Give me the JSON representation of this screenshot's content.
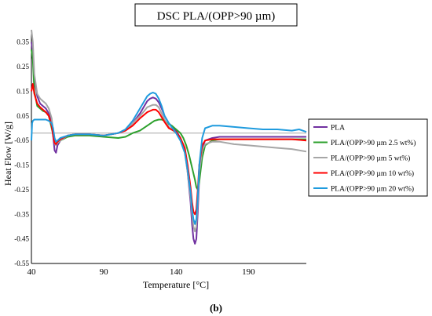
{
  "chart_data": {
    "type": "line",
    "title": "DSC PLA/(OPP>90 µm)",
    "xlabel": "Temperature [°C]",
    "ylabel": "Heat Flow [W/g]",
    "caption": "(b)",
    "xlim": [
      40,
      230
    ],
    "ylim": [
      -0.55,
      0.4
    ],
    "x_ticks": [
      40,
      90,
      140,
      190
    ],
    "y_ticks": [
      0.35,
      0.25,
      0.15,
      0.05,
      -0.05,
      -0.15,
      -0.25,
      -0.35,
      -0.45,
      -0.55
    ],
    "y_tick_labels": [
      "0.35",
      "0.25",
      "0.15",
      "0.05",
      "-0.05",
      "-0.15",
      "-0.25",
      "-0.35",
      "-0.45",
      "-0.55"
    ],
    "reference_line_y": -0.02,
    "grid": false,
    "legend_position": "right",
    "series": [
      {
        "name": "PLA",
        "color": "#7030a0",
        "x": [
          40,
          41,
          42,
          44,
          46,
          48,
          50,
          52,
          54,
          55,
          56,
          57,
          58,
          60,
          65,
          70,
          80,
          90,
          100,
          105,
          110,
          115,
          118,
          120,
          122,
          124,
          126,
          128,
          130,
          132,
          135,
          140,
          143,
          146,
          148,
          150,
          151,
          152,
          153,
          154,
          155,
          156,
          158,
          160,
          165,
          170,
          180,
          190,
          200,
          210,
          220,
          230
        ],
        "y": [
          0.35,
          0.31,
          0.21,
          0.13,
          0.1,
          0.09,
          0.08,
          0.06,
          0.02,
          -0.03,
          -0.09,
          -0.1,
          -0.07,
          -0.05,
          -0.03,
          -0.025,
          -0.025,
          -0.03,
          -0.02,
          -0.01,
          0.02,
          0.06,
          0.09,
          0.11,
          0.12,
          0.125,
          0.12,
          0.105,
          0.08,
          0.05,
          0.02,
          -0.01,
          -0.04,
          -0.09,
          -0.18,
          -0.3,
          -0.39,
          -0.45,
          -0.47,
          -0.45,
          -0.34,
          -0.2,
          -0.08,
          -0.05,
          -0.04,
          -0.035,
          -0.035,
          -0.035,
          -0.035,
          -0.035,
          -0.035,
          -0.035
        ]
      },
      {
        "name": "PLA/(OPP>90 µm 2.5 wt%)",
        "color": "#2ca02c",
        "x": [
          40,
          41,
          42,
          44,
          46,
          48,
          50,
          52,
          54,
          56,
          58,
          60,
          65,
          70,
          80,
          90,
          100,
          105,
          110,
          115,
          120,
          125,
          128,
          130,
          132,
          134,
          137,
          140,
          143,
          145,
          147,
          149,
          151,
          153,
          154,
          155,
          156,
          157,
          158,
          160,
          165,
          170,
          180,
          190,
          200,
          210,
          220,
          230
        ],
        "y": [
          0.32,
          0.28,
          0.15,
          0.09,
          0.08,
          0.07,
          0.065,
          0.05,
          0.0,
          -0.05,
          -0.06,
          -0.05,
          -0.035,
          -0.03,
          -0.03,
          -0.035,
          -0.04,
          -0.035,
          -0.02,
          -0.01,
          0.01,
          0.03,
          0.035,
          0.035,
          0.03,
          0.02,
          0.01,
          -0.005,
          -0.02,
          -0.04,
          -0.07,
          -0.11,
          -0.16,
          -0.21,
          -0.24,
          -0.25,
          -0.22,
          -0.17,
          -0.12,
          -0.07,
          -0.05,
          -0.045,
          -0.045,
          -0.045,
          -0.045,
          -0.045,
          -0.045,
          -0.045
        ]
      },
      {
        "name": "PLA/(OPP>90 µm 5 wt%)",
        "color": "#a6a6a6",
        "x": [
          40,
          41,
          42,
          44,
          46,
          48,
          50,
          52,
          54,
          55,
          56,
          57,
          58,
          60,
          65,
          70,
          80,
          90,
          100,
          105,
          110,
          115,
          118,
          120,
          122,
          124,
          126,
          128,
          130,
          132,
          135,
          140,
          143,
          146,
          148,
          150,
          151,
          152,
          153,
          154,
          155,
          156,
          158,
          160,
          165,
          170,
          180,
          190,
          200,
          210,
          220,
          230
        ],
        "y": [
          0.4,
          0.35,
          0.22,
          0.14,
          0.12,
          0.11,
          0.1,
          0.08,
          0.04,
          -0.01,
          -0.06,
          -0.07,
          -0.06,
          -0.05,
          -0.03,
          -0.025,
          -0.025,
          -0.03,
          -0.02,
          -0.01,
          0.02,
          0.05,
          0.07,
          0.085,
          0.09,
          0.095,
          0.095,
          0.085,
          0.06,
          0.035,
          0.005,
          -0.02,
          -0.05,
          -0.1,
          -0.18,
          -0.28,
          -0.35,
          -0.4,
          -0.42,
          -0.4,
          -0.3,
          -0.18,
          -0.09,
          -0.065,
          -0.055,
          -0.055,
          -0.065,
          -0.07,
          -0.075,
          -0.08,
          -0.085,
          -0.095
        ]
      },
      {
        "name": "PLA/(OPP>90 µm 10 wt%)",
        "color": "#ff0000",
        "x": [
          40,
          41,
          42,
          44,
          46,
          48,
          50,
          52,
          54,
          55,
          56,
          57,
          58,
          60,
          65,
          70,
          80,
          90,
          100,
          105,
          110,
          115,
          118,
          120,
          122,
          124,
          126,
          128,
          130,
          132,
          135,
          140,
          143,
          146,
          148,
          150,
          151,
          152,
          153,
          154,
          155,
          156,
          158,
          160,
          165,
          170,
          180,
          190,
          200,
          210,
          220,
          230
        ],
        "y": [
          0.15,
          0.18,
          0.14,
          0.1,
          0.085,
          0.075,
          0.065,
          0.05,
          0.01,
          -0.03,
          -0.06,
          -0.065,
          -0.055,
          -0.045,
          -0.03,
          -0.025,
          -0.025,
          -0.03,
          -0.02,
          -0.01,
          0.01,
          0.04,
          0.055,
          0.065,
          0.07,
          0.075,
          0.075,
          0.065,
          0.045,
          0.025,
          0.0,
          -0.015,
          -0.04,
          -0.08,
          -0.15,
          -0.24,
          -0.3,
          -0.34,
          -0.35,
          -0.33,
          -0.25,
          -0.15,
          -0.07,
          -0.05,
          -0.045,
          -0.045,
          -0.045,
          -0.045,
          -0.045,
          -0.045,
          -0.045,
          -0.05
        ]
      },
      {
        "name": "PLA/(OPP>90 µm 20 wt%)",
        "color": "#1f9bde",
        "x": [
          40,
          40.5,
          41,
          42,
          44,
          46,
          48,
          50,
          52,
          54,
          55,
          56,
          57,
          58,
          60,
          65,
          70,
          80,
          90,
          100,
          105,
          110,
          115,
          118,
          120,
          122,
          124,
          126,
          128,
          130,
          132,
          135,
          140,
          143,
          146,
          148,
          150,
          151,
          152,
          153,
          154,
          155,
          156,
          158,
          160,
          165,
          170,
          180,
          190,
          200,
          210,
          220,
          225,
          230
        ],
        "y": [
          -0.05,
          0.02,
          0.03,
          0.035,
          0.035,
          0.035,
          0.035,
          0.035,
          0.03,
          0.02,
          0.0,
          -0.04,
          -0.055,
          -0.05,
          -0.04,
          -0.03,
          -0.025,
          -0.025,
          -0.03,
          -0.02,
          -0.005,
          0.03,
          0.08,
          0.11,
          0.13,
          0.14,
          0.145,
          0.14,
          0.12,
          0.09,
          0.05,
          0.02,
          -0.02,
          -0.05,
          -0.1,
          -0.17,
          -0.26,
          -0.33,
          -0.37,
          -0.39,
          -0.37,
          -0.28,
          -0.15,
          -0.04,
          0.0,
          0.01,
          0.01,
          0.005,
          0.0,
          -0.005,
          -0.005,
          -0.01,
          -0.005,
          -0.015
        ]
      }
    ]
  }
}
